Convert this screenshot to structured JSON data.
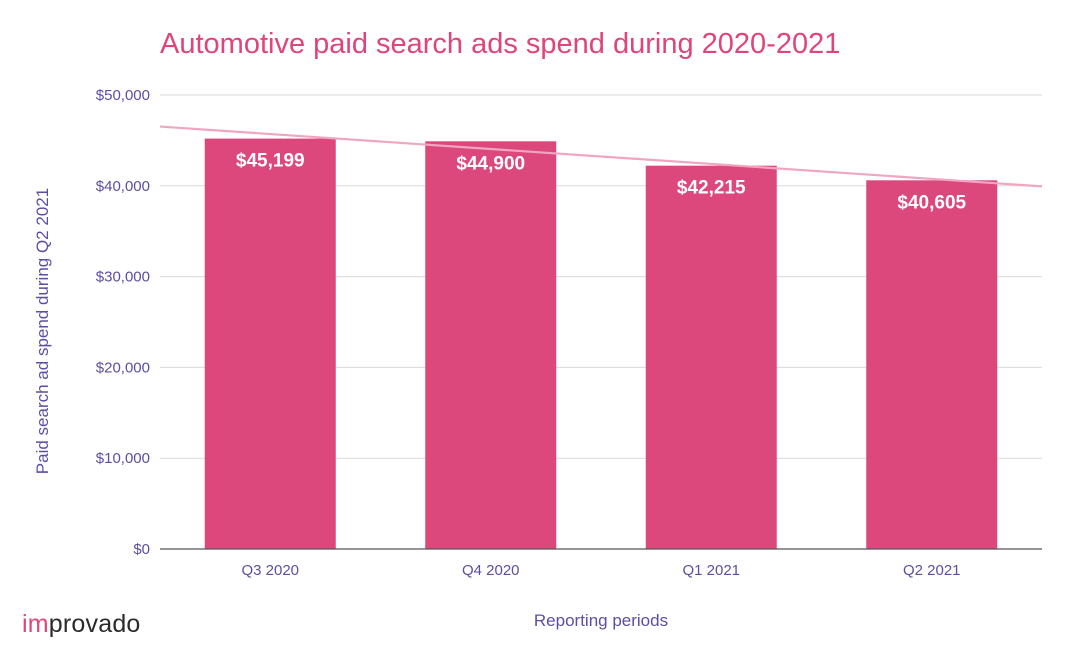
{
  "chart_data": {
    "type": "bar",
    "title": "Automotive paid search ads spend during 2020-2021",
    "xlabel": "Reporting periods",
    "ylabel": "Paid search ad spend during Q2 2021",
    "categories": [
      "Q3 2020",
      "Q4 2020",
      "Q1 2021",
      "Q2 2021"
    ],
    "values": [
      45199,
      44900,
      42215,
      40605
    ],
    "value_labels": [
      "$45,199",
      "$44,900",
      "$42,215",
      "$40,605"
    ],
    "ylim": [
      0,
      50000
    ],
    "yticks": [
      0,
      10000,
      20000,
      30000,
      40000,
      50000
    ],
    "ytick_labels": [
      "$0",
      "$10,000",
      "$20,000",
      "$30,000",
      "$40,000",
      "$50,000"
    ],
    "grid": true,
    "trendline": true,
    "legend": "none",
    "colors": {
      "bar": "#dc477c",
      "trendline": "#f0a6c1",
      "grid": "#d9d9d9",
      "axis": "#555555",
      "title": "#e0447a",
      "text": "#5b4fa3"
    }
  },
  "brand": {
    "prefix": "im",
    "suffix": "provado"
  }
}
